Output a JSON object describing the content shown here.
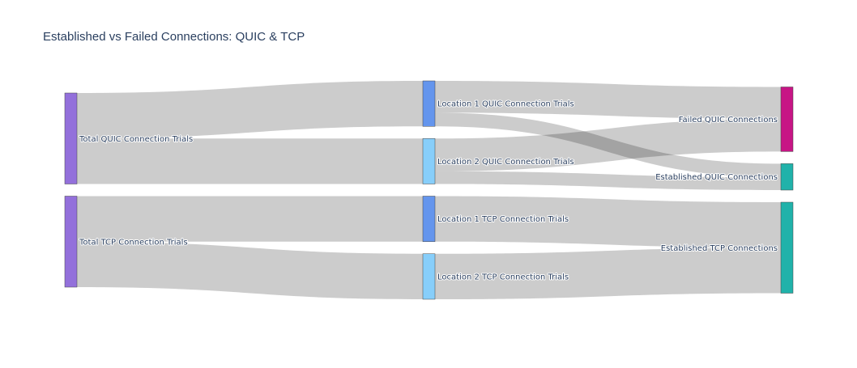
{
  "chart_data": {
    "type": "sankey",
    "title": "Established vs Failed Connections: QUIC & TCP",
    "nodes": [
      {
        "id": "total_quic",
        "label": "Total QUIC Connection Trials",
        "color": "#9370DB",
        "column": 0
      },
      {
        "id": "total_tcp",
        "label": "Total TCP Connection Trials",
        "color": "#9370DB",
        "column": 0
      },
      {
        "id": "loc1_quic",
        "label": "Location 1 QUIC Connection Trials",
        "color": "#6495ED",
        "column": 1
      },
      {
        "id": "loc2_quic",
        "label": "Location 2 QUIC Connection Trials",
        "color": "#87CEFA",
        "column": 1
      },
      {
        "id": "loc1_tcp",
        "label": "Location 1 TCP Connection Trials",
        "color": "#6495ED",
        "column": 1
      },
      {
        "id": "loc2_tcp",
        "label": "Location 2 TCP Connection Trials",
        "color": "#87CEFA",
        "column": 1
      },
      {
        "id": "failed_quic",
        "label": "Failed QUIC Connections",
        "color": "#C71585",
        "column": 2
      },
      {
        "id": "est_quic",
        "label": "Established QUIC Connections",
        "color": "#20B2AA",
        "column": 2
      },
      {
        "id": "est_tcp",
        "label": "Established TCP Connections",
        "color": "#20B2AA",
        "column": 2
      }
    ],
    "links": [
      {
        "source": "total_quic",
        "target": "loc1_quic",
        "value": 100
      },
      {
        "source": "total_quic",
        "target": "loc2_quic",
        "value": 100
      },
      {
        "source": "total_tcp",
        "target": "loc1_tcp",
        "value": 100
      },
      {
        "source": "total_tcp",
        "target": "loc2_tcp",
        "value": 100
      },
      {
        "source": "loc1_quic",
        "target": "failed_quic",
        "value": 70
      },
      {
        "source": "loc1_quic",
        "target": "est_quic",
        "value": 30
      },
      {
        "source": "loc2_quic",
        "target": "failed_quic",
        "value": 72
      },
      {
        "source": "loc2_quic",
        "target": "est_quic",
        "value": 28
      },
      {
        "source": "loc1_tcp",
        "target": "est_tcp",
        "value": 100
      },
      {
        "source": "loc2_tcp",
        "target": "est_tcp",
        "value": 100
      }
    ],
    "link_color": "rgba(0,0,0,0.2)",
    "label_color": "#2a3f5f"
  }
}
